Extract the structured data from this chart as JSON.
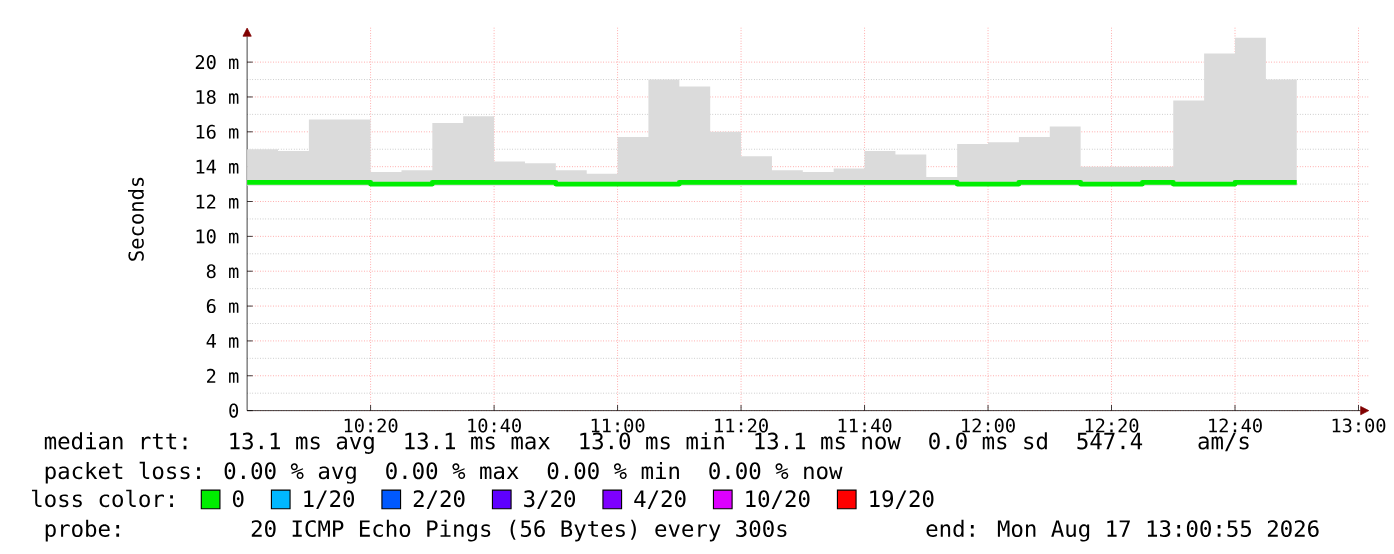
{
  "chart_data": {
    "type": "step",
    "ylabel": "Seconds",
    "legend_title": "loss color:",
    "legend": "bottom",
    "grid": true,
    "xlim": [
      10,
      13.03
    ],
    "ylim": [
      0,
      22
    ],
    "xticks": [
      {
        "value": 10.3333,
        "label": "10:20"
      },
      {
        "value": 10.6667,
        "label": "10:40"
      },
      {
        "value": 11,
        "label": "11:00"
      },
      {
        "value": 11.3333,
        "label": "11:20"
      },
      {
        "value": 11.6667,
        "label": "11:40"
      },
      {
        "value": 12,
        "label": "12:00"
      },
      {
        "value": 12.3333,
        "label": "12:20"
      },
      {
        "value": 12.6667,
        "label": "12:40"
      },
      {
        "value": 13,
        "label": "13:00"
      }
    ],
    "yticks": [
      0,
      {
        "value": 2,
        "label": "2 m"
      },
      {
        "value": 4,
        "label": "4 m"
      },
      {
        "value": 6,
        "label": "6 m"
      },
      {
        "value": 8,
        "label": "8 m"
      },
      {
        "value": 10,
        "label": "10 m"
      },
      {
        "value": 12,
        "label": "12 m"
      },
      {
        "value": 14,
        "label": "14 m"
      },
      {
        "value": 16,
        "label": "16 m"
      },
      {
        "value": 18,
        "label": "18 m"
      },
      {
        "value": 20,
        "label": "20 m"
      }
    ],
    "x": [
      10,
      10.0833,
      10.1667,
      10.25,
      10.3333,
      10.4167,
      10.5,
      10.5833,
      10.6667,
      10.75,
      10.8333,
      10.9167,
      11,
      11.0833,
      11.1667,
      11.25,
      11.3333,
      11.4167,
      11.5,
      11.5833,
      11.6667,
      11.75,
      11.8333,
      11.9167,
      12,
      12.0833,
      12.1667,
      12.25,
      12.3333,
      12.4167,
      12.5,
      12.5833,
      12.6667,
      12.75,
      12.8333
    ],
    "series": [
      {
        "name": "0",
        "color": "#00ee00",
        "values": [
          13.1,
          13.1,
          13.1,
          13.1,
          13.0,
          13.0,
          13.1,
          13.1,
          13.1,
          13.1,
          13.0,
          13.0,
          13.0,
          13.0,
          13.1,
          13.1,
          13.1,
          13.1,
          13.1,
          13.1,
          13.1,
          13.1,
          13.1,
          13.0,
          13.0,
          13.1,
          13.1,
          13.0,
          13.0,
          13.1,
          13.0,
          13.0,
          13.1,
          13.1,
          13.1
        ],
        "lower": [
          12.9,
          12.9,
          12.9,
          12.9,
          12.9,
          12.9,
          12.9,
          12.9,
          12.9,
          12.9,
          12.9,
          12.9,
          12.9,
          12.9,
          12.9,
          12.9,
          12.9,
          12.9,
          12.9,
          12.9,
          12.9,
          12.9,
          12.9,
          12.9,
          12.9,
          12.9,
          12.9,
          12.9,
          12.9,
          12.9,
          12.9,
          12.9,
          12.9,
          12.9,
          12.9
        ],
        "upper": [
          15.0,
          14.9,
          16.7,
          16.7,
          13.7,
          13.8,
          16.5,
          16.9,
          14.3,
          14.2,
          13.8,
          13.6,
          15.7,
          19.0,
          18.6,
          16.0,
          14.6,
          13.8,
          13.7,
          13.9,
          14.9,
          14.7,
          13.4,
          15.3,
          15.4,
          15.7,
          16.3,
          14.0,
          14.0,
          14.0,
          17.8,
          20.5,
          21.4,
          19.0,
          19.0
        ]
      },
      {
        "name": "1/20",
        "color": "#00b8ff",
        "values": [
          null,
          null,
          null,
          null,
          null,
          null,
          null,
          null,
          null,
          null,
          null,
          null,
          null,
          null,
          null,
          null,
          null,
          null,
          null,
          null,
          null,
          null,
          null,
          null,
          null,
          null,
          null,
          null,
          null,
          null,
          null,
          null,
          null,
          null,
          null
        ]
      },
      {
        "name": "2/20",
        "color": "#0059ff",
        "values": [
          null,
          null,
          null,
          null,
          null,
          null,
          null,
          null,
          null,
          null,
          null,
          null,
          null,
          null,
          null,
          null,
          null,
          null,
          null,
          null,
          null,
          null,
          null,
          null,
          null,
          null,
          null,
          null,
          null,
          null,
          null,
          null,
          null,
          null,
          null
        ]
      },
      {
        "name": "3/20",
        "color": "#5e00ff",
        "values": [
          null,
          null,
          null,
          null,
          null,
          null,
          null,
          null,
          null,
          null,
          null,
          null,
          null,
          null,
          null,
          null,
          null,
          null,
          null,
          null,
          null,
          null,
          null,
          null,
          null,
          null,
          null,
          null,
          null,
          null,
          null,
          null,
          null,
          null,
          null
        ]
      },
      {
        "name": "4/20",
        "color": "#7e00ff",
        "values": [
          null,
          null,
          null,
          null,
          null,
          null,
          null,
          null,
          null,
          null,
          null,
          null,
          null,
          null,
          null,
          null,
          null,
          null,
          null,
          null,
          null,
          null,
          null,
          null,
          null,
          null,
          null,
          null,
          null,
          null,
          null,
          null,
          null,
          null,
          null
        ]
      },
      {
        "name": "10/20",
        "color": "#dd00ff",
        "values": [
          null,
          null,
          null,
          null,
          null,
          null,
          null,
          null,
          null,
          null,
          null,
          null,
          null,
          null,
          null,
          null,
          null,
          null,
          null,
          null,
          null,
          null,
          null,
          null,
          null,
          null,
          null,
          null,
          null,
          null,
          null,
          null,
          null,
          null,
          null
        ]
      },
      {
        "name": "19/20",
        "color": "#ff0000",
        "values": [
          null,
          null,
          null,
          null,
          null,
          null,
          null,
          null,
          null,
          null,
          null,
          null,
          null,
          null,
          null,
          null,
          null,
          null,
          null,
          null,
          null,
          null,
          null,
          null,
          null,
          null,
          null,
          null,
          null,
          null,
          null,
          null,
          null,
          null,
          null
        ]
      }
    ],
    "annotations": [
      "median rtt:  13.1 ms avg  13.1 ms max  13.0 ms min  13.1 ms now  0.0 ms sd  547.4    am/s",
      "packet loss: 0.00 % avg  0.00 % max  0.00 % min  0.00 % now",
      "probe:       20 ICMP Echo Pings (56 Bytes) every 300s",
      "end: Mon Aug 17 13:00:55 2026"
    ]
  }
}
